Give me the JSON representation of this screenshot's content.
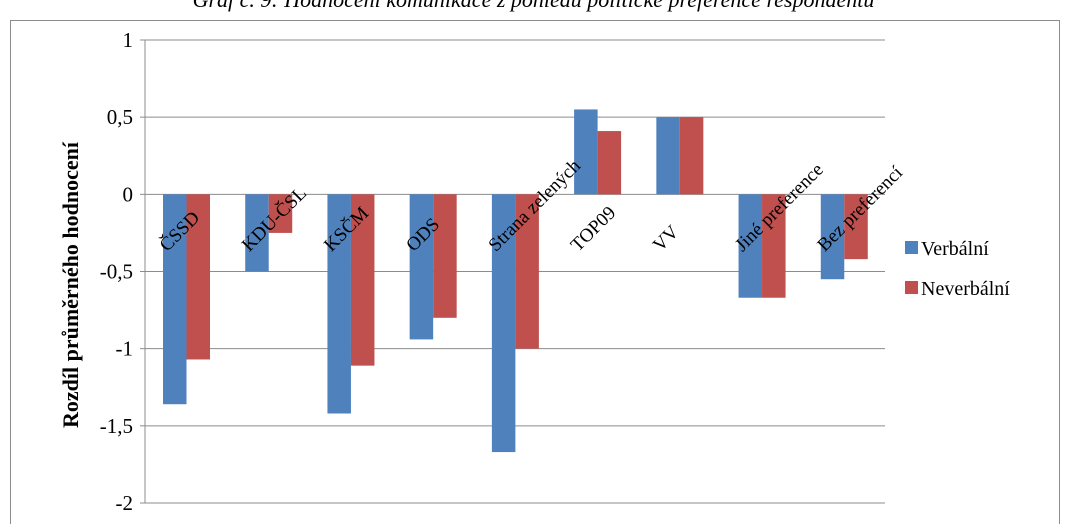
{
  "title": "Graf č. 9: Hodnocení komunikace z pohledu politické preference respondentů",
  "chart_data": {
    "type": "bar",
    "title": "Graf č. 9: Hodnocení komunikace z pohledu politické preference respondentů",
    "xlabel": "",
    "ylabel": "Rozdíl průměrného hodnocení",
    "ylim": [
      -2,
      1
    ],
    "yticks": [
      1,
      0.5,
      0,
      -0.5,
      -1,
      -1.5,
      -2
    ],
    "ytick_labels": [
      "1",
      "0,5",
      "0",
      "-0,5",
      "-1",
      "-1,5",
      "-2"
    ],
    "grid": true,
    "legend_position": "right",
    "categories": [
      "ČSSD",
      "KDU-ČSL",
      "KSČM",
      "ODS",
      "Strana zelených",
      "TOP09",
      "VV",
      "Jiné preference",
      "Bez preferencí"
    ],
    "series": [
      {
        "name": "Verbální",
        "color": "#4f81bd",
        "values": [
          -1.36,
          -0.5,
          -1.42,
          -0.94,
          -1.67,
          0.55,
          0.5,
          -0.67,
          -0.55
        ]
      },
      {
        "name": "Neverbální",
        "color": "#c0504d",
        "values": [
          -1.07,
          -0.25,
          -1.11,
          -0.8,
          -1.0,
          0.41,
          0.5,
          -0.67,
          -0.42
        ]
      }
    ]
  }
}
